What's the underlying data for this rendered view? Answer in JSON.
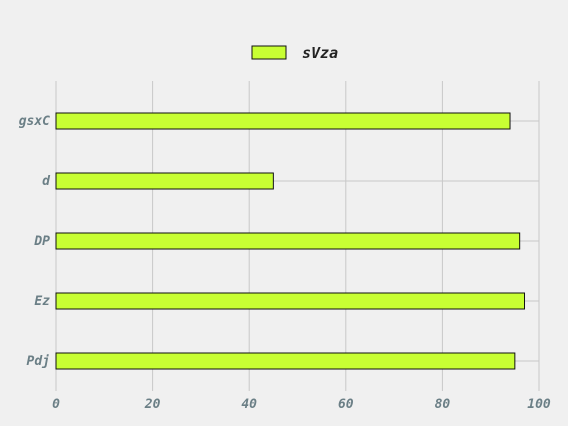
{
  "chart_data": {
    "type": "bar",
    "orientation": "horizontal",
    "categories": [
      "gsxC",
      "d",
      "DP",
      "Ez",
      "Pdj"
    ],
    "series": [
      {
        "name": "sVza",
        "values": [
          94,
          45,
          96,
          97,
          95
        ]
      }
    ],
    "xlim": [
      0,
      100
    ],
    "x_ticks": [
      "0",
      "20",
      "40",
      "60",
      "80",
      "100"
    ],
    "grid": true,
    "legend_position": "top-center",
    "colors": {
      "bar_fill": "#c8ff33",
      "bar_stroke": "#111111",
      "grid": "#c8c8c8",
      "tick_text": "#6b7f86",
      "background": "#f0f0f0"
    }
  }
}
